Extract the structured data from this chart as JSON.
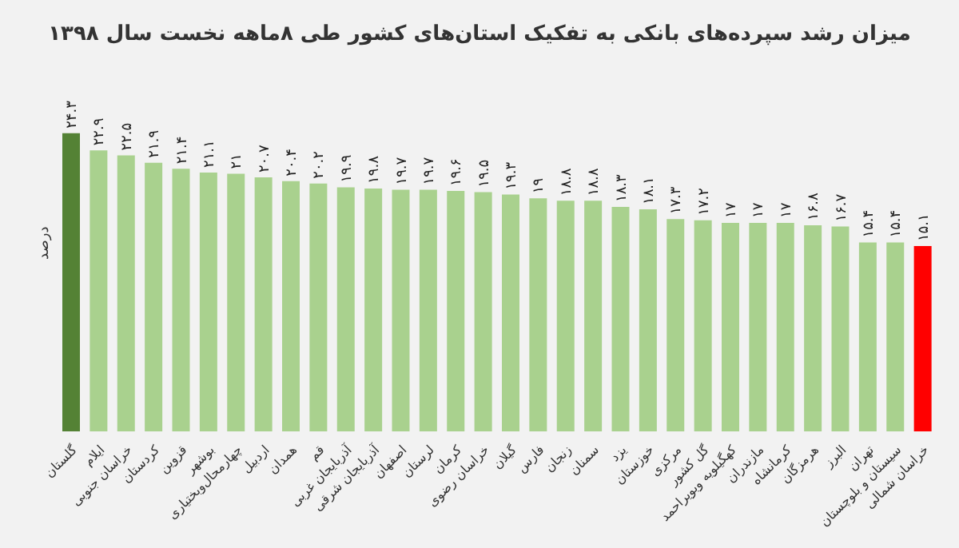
{
  "chart_data": {
    "type": "bar",
    "title": "میزان رشد سپرده‌های بانکی به تفکیک استان‌های کشور طی ۸ماهه نخست سال ۱۳۹۸",
    "ylabel": "درصد",
    "categories": [
      "گلستان",
      "ایلام",
      "خراسان جنوبی",
      "کردستان",
      "قزوین",
      "بوشهر",
      "چهارمحال‌وبختیاری",
      "اردبیل",
      "همدان",
      "قم",
      "آذربایجان غربی",
      "آذربایجان شرقی",
      "اصفهان",
      "لرستان",
      "کرمان",
      "خراسان رضوی",
      "گیلان",
      "فارس",
      "زنجان",
      "سمنان",
      "یزد",
      "خوزستان",
      "مرکزی",
      "گل کشور",
      "کهگیلویه وبویراحمد",
      "مازندران",
      "کرمانشاه",
      "هرمزگان",
      "البرز",
      "تهران",
      "سیستان و بلوچستان",
      "خراسان شمالی"
    ],
    "values": [
      24.3,
      22.9,
      22.5,
      21.9,
      21.4,
      21.1,
      21,
      20.7,
      20.4,
      20.2,
      19.9,
      19.8,
      19.7,
      19.7,
      19.6,
      19.5,
      19.3,
      19,
      18.8,
      18.8,
      18.3,
      18.1,
      17.3,
      17.2,
      17,
      17,
      17,
      16.8,
      16.7,
      15.4,
      15.4,
      15.1
    ],
    "value_labels": [
      "۲۴.۳",
      "۲۲.۹",
      "۲۲.۵",
      "۲۱.۹",
      "۲۱.۴",
      "۲۱.۱",
      "۲۱",
      "۲۰.۷",
      "۲۰.۴",
      "۲۰.۲",
      "۱۹.۹",
      "۱۹.۸",
      "۱۹.۷",
      "۱۹.۷",
      "۱۹.۶",
      "۱۹.۵",
      "۱۹.۳",
      "۱۹",
      "۱۸.۸",
      "۱۸.۸",
      "۱۸.۳",
      "۱۸.۱",
      "۱۷.۳",
      "۱۷.۲",
      "۱۷",
      "۱۷",
      "۱۷",
      "۱۶.۸",
      "۱۶.۷",
      "۱۵.۴",
      "۱۵.۴",
      "۱۵.۱"
    ],
    "colors": [
      "#548235",
      "#a9d18e",
      "#a9d18e",
      "#a9d18e",
      "#a9d18e",
      "#a9d18e",
      "#a9d18e",
      "#a9d18e",
      "#a9d18e",
      "#a9d18e",
      "#a9d18e",
      "#a9d18e",
      "#a9d18e",
      "#a9d18e",
      "#a9d18e",
      "#a9d18e",
      "#a9d18e",
      "#a9d18e",
      "#a9d18e",
      "#a9d18e",
      "#a9d18e",
      "#a9d18e",
      "#a9d18e",
      "#a9d18e",
      "#a9d18e",
      "#a9d18e",
      "#a9d18e",
      "#a9d18e",
      "#a9d18e",
      "#a9d18e",
      "#a9d18e",
      "#ff0000"
    ],
    "tick_labels": "x"
  }
}
